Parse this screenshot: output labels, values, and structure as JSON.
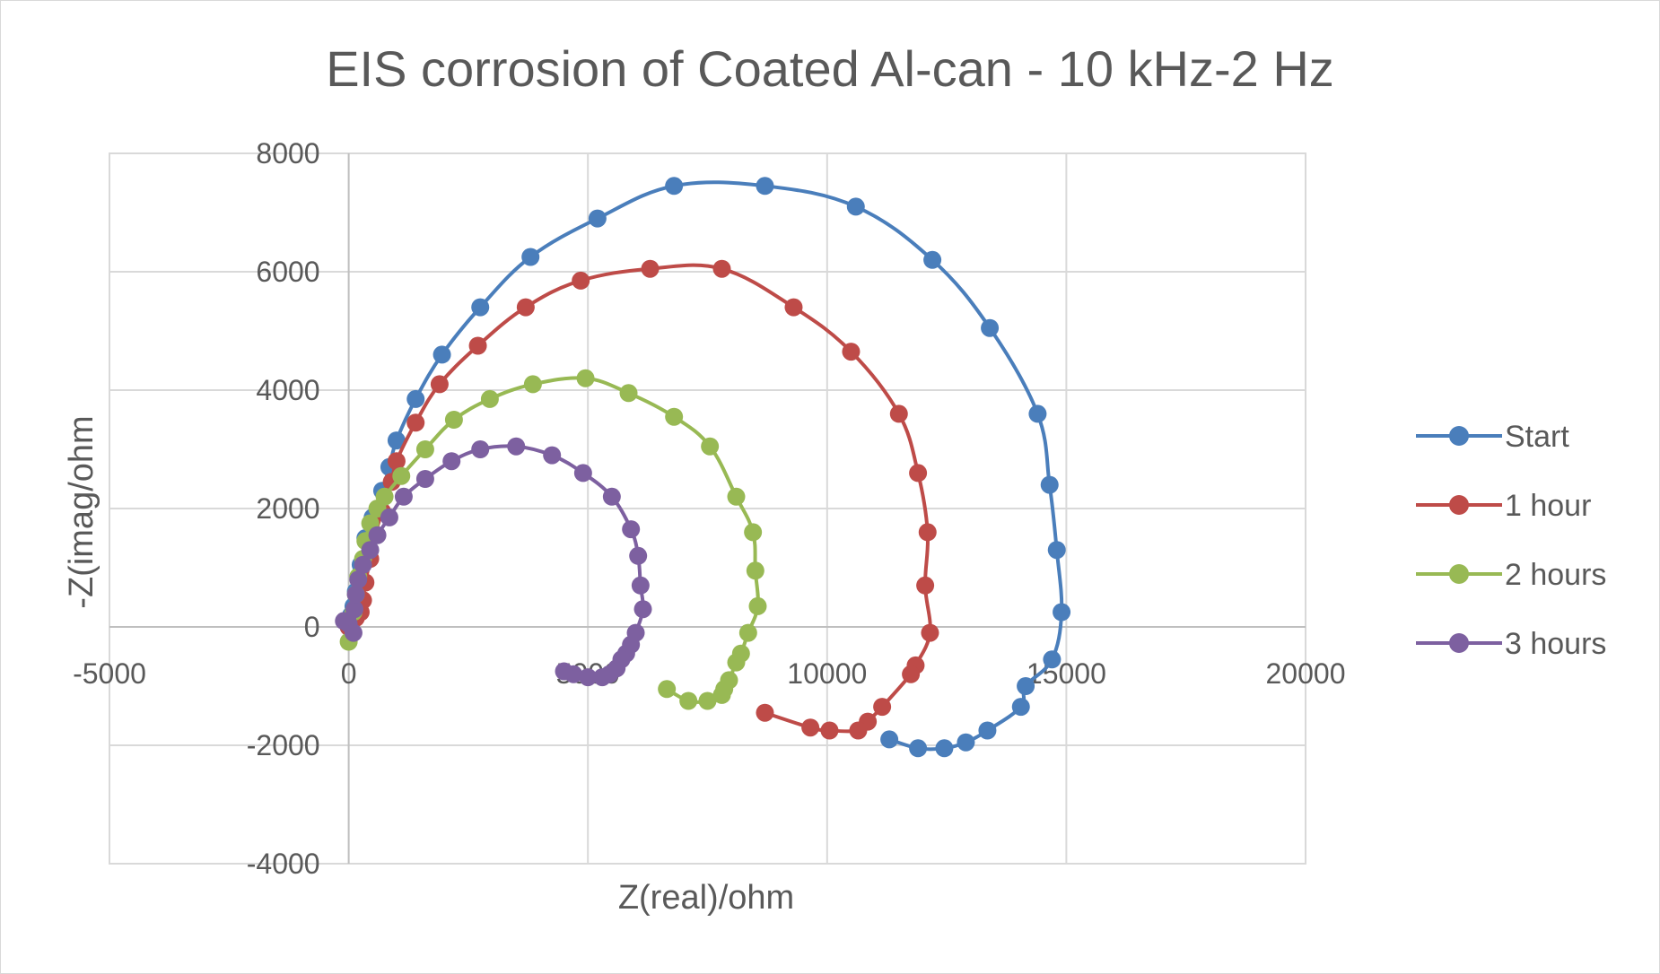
{
  "chart_data": {
    "type": "scatter",
    "title": "EIS corrosion of Coated Al-can - 10 kHz-2 Hz",
    "xlabel": "Z(real)/ohm",
    "ylabel": "-Z(imag/ohm",
    "xlim": [
      -5000,
      20000
    ],
    "ylim": [
      -4000,
      8000
    ],
    "x_ticks": [
      -5000,
      0,
      5000,
      10000,
      15000,
      20000
    ],
    "y_ticks": [
      -4000,
      -2000,
      0,
      2000,
      4000,
      6000,
      8000
    ],
    "x_tick_labels": [
      "-5000",
      "0",
      "5000",
      "10000",
      "15000",
      "20000"
    ],
    "y_tick_labels": [
      "-4000",
      "-2000",
      "0",
      "2000",
      "4000",
      "6000",
      "8000"
    ],
    "grid": true,
    "legend_position": "right",
    "markers": true,
    "smooth_lines": true,
    "series": [
      {
        "name": "Start",
        "color": "#4a7ebb",
        "points": [
          [
            0,
            0
          ],
          [
            50,
            200
          ],
          [
            100,
            350
          ],
          [
            150,
            600
          ],
          [
            250,
            1050
          ],
          [
            350,
            1500
          ],
          [
            500,
            1850
          ],
          [
            700,
            2300
          ],
          [
            850,
            2700
          ],
          [
            1000,
            3150
          ],
          [
            1400,
            3850
          ],
          [
            1950,
            4600
          ],
          [
            2750,
            5400
          ],
          [
            3800,
            6250
          ],
          [
            5200,
            6900
          ],
          [
            6800,
            7450
          ],
          [
            8700,
            7450
          ],
          [
            10600,
            7100
          ],
          [
            12200,
            6200
          ],
          [
            13400,
            5050
          ],
          [
            14400,
            3600
          ],
          [
            14650,
            2400
          ],
          [
            14800,
            1300
          ],
          [
            14900,
            250
          ],
          [
            14700,
            -550
          ],
          [
            14150,
            -1000
          ],
          [
            14050,
            -1350
          ],
          [
            13350,
            -1750
          ],
          [
            12900,
            -1950
          ],
          [
            12450,
            -2050
          ],
          [
            11900,
            -2050
          ],
          [
            11300,
            -1900
          ]
        ]
      },
      {
        "name": "1 hour",
        "color": "#be4b48",
        "points": [
          [
            0,
            0
          ],
          [
            150,
            150
          ],
          [
            250,
            250
          ],
          [
            300,
            450
          ],
          [
            350,
            750
          ],
          [
            450,
            1150
          ],
          [
            550,
            1550
          ],
          [
            700,
            1950
          ],
          [
            900,
            2450
          ],
          [
            1000,
            2800
          ],
          [
            1400,
            3450
          ],
          [
            1900,
            4100
          ],
          [
            2700,
            4750
          ],
          [
            3700,
            5400
          ],
          [
            4850,
            5850
          ],
          [
            6300,
            6050
          ],
          [
            7800,
            6050
          ],
          [
            9300,
            5400
          ],
          [
            10500,
            4650
          ],
          [
            11500,
            3600
          ],
          [
            11900,
            2600
          ],
          [
            12100,
            1600
          ],
          [
            12050,
            700
          ],
          [
            12150,
            -100
          ],
          [
            11850,
            -650
          ],
          [
            11750,
            -800
          ],
          [
            11150,
            -1350
          ],
          [
            10850,
            -1600
          ],
          [
            10650,
            -1750
          ],
          [
            10050,
            -1750
          ],
          [
            9650,
            -1700
          ],
          [
            8700,
            -1450
          ]
        ]
      },
      {
        "name": "2 hours",
        "color": "#98b954",
        "points": [
          [
            0,
            -250
          ],
          [
            100,
            250
          ],
          [
            150,
            550
          ],
          [
            200,
            850
          ],
          [
            300,
            1150
          ],
          [
            350,
            1450
          ],
          [
            450,
            1750
          ],
          [
            600,
            2000
          ],
          [
            750,
            2200
          ],
          [
            1100,
            2550
          ],
          [
            1600,
            3000
          ],
          [
            2200,
            3500
          ],
          [
            2950,
            3850
          ],
          [
            3850,
            4100
          ],
          [
            4950,
            4200
          ],
          [
            5850,
            3950
          ],
          [
            6800,
            3550
          ],
          [
            7550,
            3050
          ],
          [
            8100,
            2200
          ],
          [
            8450,
            1600
          ],
          [
            8500,
            950
          ],
          [
            8550,
            350
          ],
          [
            8350,
            -100
          ],
          [
            8200,
            -450
          ],
          [
            8100,
            -600
          ],
          [
            7950,
            -900
          ],
          [
            7850,
            -1050
          ],
          [
            7800,
            -1150
          ],
          [
            7500,
            -1250
          ],
          [
            7100,
            -1250
          ],
          [
            6650,
            -1050
          ]
        ]
      },
      {
        "name": "3 hours",
        "color": "#7d60a0",
        "points": [
          [
            0,
            50
          ],
          [
            -100,
            100
          ],
          [
            100,
            -100
          ],
          [
            120,
            300
          ],
          [
            150,
            550
          ],
          [
            200,
            800
          ],
          [
            300,
            1050
          ],
          [
            450,
            1300
          ],
          [
            600,
            1550
          ],
          [
            850,
            1850
          ],
          [
            1150,
            2200
          ],
          [
            1600,
            2500
          ],
          [
            2150,
            2800
          ],
          [
            2750,
            3000
          ],
          [
            3500,
            3050
          ],
          [
            4250,
            2900
          ],
          [
            4900,
            2600
          ],
          [
            5500,
            2200
          ],
          [
            5900,
            1650
          ],
          [
            6050,
            1200
          ],
          [
            6100,
            700
          ],
          [
            6150,
            300
          ],
          [
            6000,
            -100
          ],
          [
            5900,
            -300
          ],
          [
            5800,
            -450
          ],
          [
            5700,
            -550
          ],
          [
            5600,
            -700
          ],
          [
            5450,
            -800
          ],
          [
            5300,
            -850
          ],
          [
            5000,
            -850
          ],
          [
            4700,
            -800
          ],
          [
            4500,
            -750
          ]
        ]
      }
    ]
  }
}
